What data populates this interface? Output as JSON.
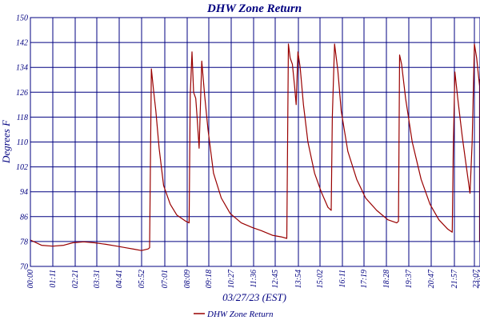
{
  "chart_data": {
    "type": "line",
    "title": "DHW Zone Return",
    "xlabel": "03/27/23 (EST)",
    "ylabel": "Degrees F",
    "ylim": [
      70,
      150
    ],
    "yticks": [
      "150",
      "142",
      "134",
      "126",
      "118",
      "110",
      "102",
      "94",
      "86",
      "78",
      "70"
    ],
    "xticks": [
      "00:00",
      "01:11",
      "02:21",
      "03:31",
      "04:41",
      "05:52",
      "07:01",
      "08:09",
      "09:18",
      "10:27",
      "11:36",
      "12:45",
      "13:54",
      "15:02",
      "16:11",
      "17:19",
      "18:28",
      "19:37",
      "20:47",
      "21:57",
      "23:07",
      "23:54"
    ],
    "grid": true,
    "legend_position": "bottom",
    "line_color": "#990000",
    "series": [
      {
        "name": "DHW Zone Return",
        "points": [
          [
            0.0,
            78.5
          ],
          [
            0.5,
            76.8
          ],
          [
            1.0,
            76.5
          ],
          [
            1.5,
            76.8
          ],
          [
            1.9,
            77.6
          ],
          [
            2.4,
            77.9
          ],
          [
            2.9,
            77.6
          ],
          [
            3.4,
            77.1
          ],
          [
            3.9,
            76.5
          ],
          [
            4.3,
            76.0
          ],
          [
            4.7,
            75.5
          ],
          [
            5.0,
            75.1
          ],
          [
            5.3,
            75.6
          ],
          [
            5.37,
            76.0
          ],
          [
            5.45,
            133.5
          ],
          [
            5.55,
            126.5
          ],
          [
            5.65,
            120.0
          ],
          [
            5.8,
            108.0
          ],
          [
            6.0,
            96.0
          ],
          [
            6.3,
            90.0
          ],
          [
            6.6,
            86.5
          ],
          [
            7.0,
            84.5
          ],
          [
            7.15,
            84.0
          ],
          [
            7.2,
            125.0
          ],
          [
            7.28,
            139.0
          ],
          [
            7.35,
            126.0
          ],
          [
            7.45,
            124.0
          ],
          [
            7.5,
            119.0
          ],
          [
            7.6,
            108.0
          ],
          [
            7.72,
            136.0
          ],
          [
            7.85,
            125.0
          ],
          [
            8.0,
            114.0
          ],
          [
            8.25,
            100.0
          ],
          [
            8.6,
            92.0
          ],
          [
            9.0,
            87.0
          ],
          [
            9.5,
            84.0
          ],
          [
            10.0,
            82.5
          ],
          [
            10.4,
            81.5
          ],
          [
            10.9,
            80.0
          ],
          [
            11.3,
            79.5
          ],
          [
            11.55,
            79.0
          ],
          [
            11.62,
            141.5
          ],
          [
            11.7,
            137.0
          ],
          [
            11.8,
            135.0
          ],
          [
            11.9,
            128.0
          ],
          [
            11.97,
            122.0
          ],
          [
            12.05,
            139.0
          ],
          [
            12.15,
            134.0
          ],
          [
            12.3,
            122.0
          ],
          [
            12.5,
            110.0
          ],
          [
            12.8,
            100.0
          ],
          [
            13.1,
            94.0
          ],
          [
            13.4,
            89.0
          ],
          [
            13.55,
            88.0
          ],
          [
            13.6,
            118.0
          ],
          [
            13.7,
            141.5
          ],
          [
            13.85,
            133.0
          ],
          [
            14.0,
            120.0
          ],
          [
            14.3,
            107.0
          ],
          [
            14.7,
            98.0
          ],
          [
            15.1,
            92.0
          ],
          [
            15.6,
            88.0
          ],
          [
            16.1,
            85.0
          ],
          [
            16.5,
            84.0
          ],
          [
            16.58,
            84.5
          ],
          [
            16.63,
            138.0
          ],
          [
            16.72,
            135.0
          ],
          [
            16.9,
            124.0
          ],
          [
            17.2,
            110.0
          ],
          [
            17.6,
            98.0
          ],
          [
            18.0,
            90.0
          ],
          [
            18.4,
            85.0
          ],
          [
            18.8,
            82.0
          ],
          [
            19.0,
            81.0
          ],
          [
            19.05,
            108.0
          ],
          [
            19.12,
            132.5
          ],
          [
            19.25,
            124.0
          ],
          [
            19.45,
            112.0
          ],
          [
            19.6,
            104.0
          ],
          [
            19.8,
            93.5
          ],
          [
            19.9,
            110.0
          ],
          [
            20.0,
            141.5
          ],
          [
            20.1,
            137.0
          ],
          [
            20.3,
            128.0
          ],
          [
            20.5,
            115.0
          ],
          [
            20.8,
            104.0
          ],
          [
            21.2,
            97.0
          ],
          [
            21.6,
            91.0
          ],
          [
            22.0,
            86.0
          ],
          [
            22.4,
            83.0
          ],
          [
            22.7,
            82.0
          ],
          [
            23.0,
            80.5
          ],
          [
            23.5,
            80.0
          ],
          [
            24.0,
            80.0
          ],
          [
            24.4,
            79.5
          ],
          [
            24.7,
            78.5
          ],
          [
            24.8,
            78.0
          ],
          [
            24.85,
            118.0
          ],
          [
            24.92,
            130.0
          ],
          [
            25.0,
            128.0
          ],
          [
            25.2,
            117.0
          ],
          [
            25.4,
            106.0
          ],
          [
            25.6,
            98.0
          ],
          [
            25.8,
            92.0
          ],
          [
            26.0,
            88.0
          ],
          [
            26.15,
            86.5
          ]
        ]
      }
    ]
  }
}
